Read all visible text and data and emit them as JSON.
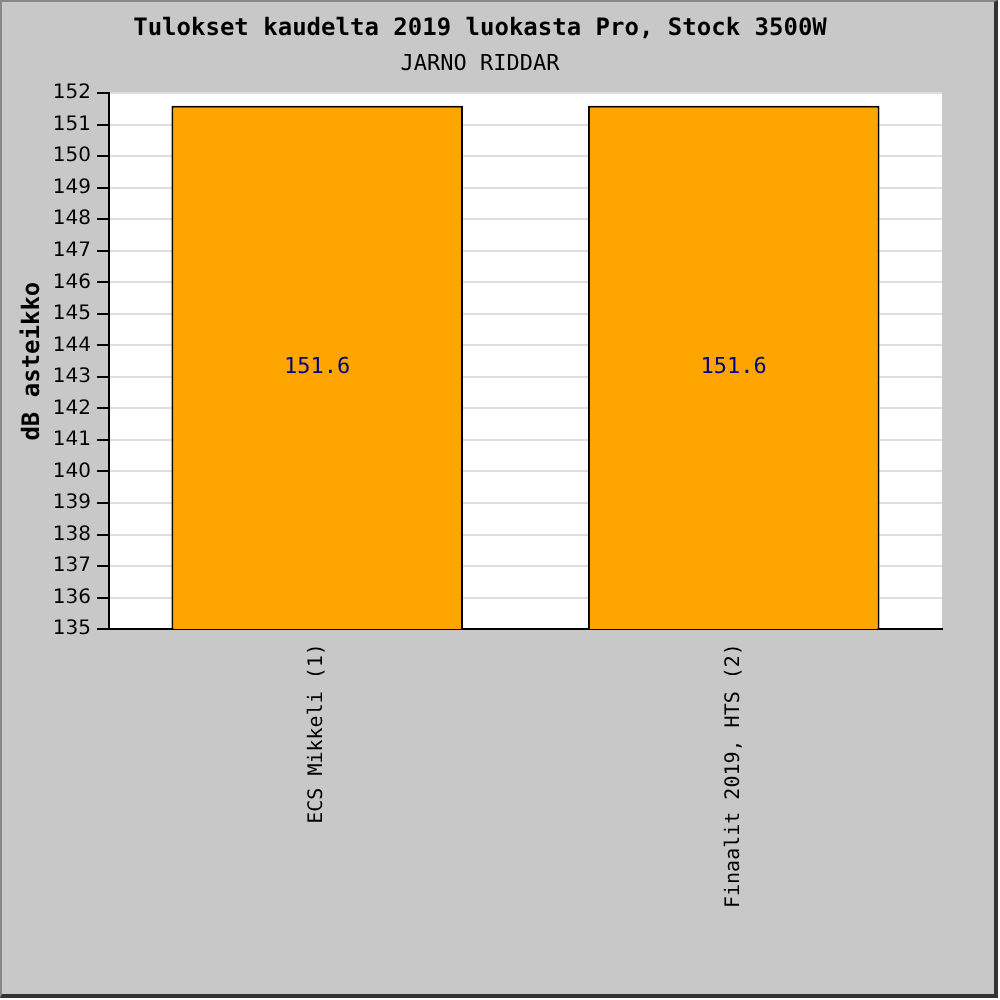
{
  "chart_data": {
    "type": "bar",
    "title": "Tulokset kaudelta 2019 luokasta Pro, Stock 3500W",
    "subtitle": "JARNO RIDDAR",
    "ylabel": "dB asteikko",
    "categories": [
      "ECS Mikkeli (1)",
      "Finaalit 2019, HTS (2)"
    ],
    "values": [
      151.6,
      151.6
    ],
    "color": "#ffa500",
    "ylim": [
      135,
      152
    ],
    "yticks": [
      135,
      136,
      137,
      138,
      139,
      140,
      141,
      142,
      143,
      144,
      145,
      146,
      147,
      148,
      149,
      150,
      151,
      152
    ],
    "grid": "y",
    "data_labels": true,
    "legend": false
  }
}
